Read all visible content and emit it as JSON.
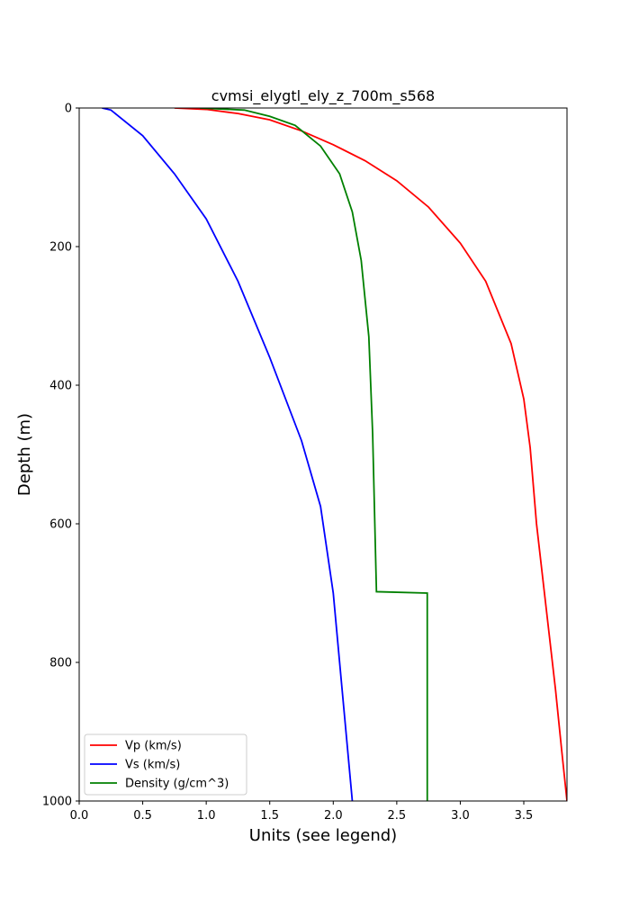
{
  "chart_data": {
    "type": "line",
    "title": "cvmsi_elygtl_ely_z_700m_s568",
    "xlabel": "Units (see legend)",
    "ylabel": "Depth (m)",
    "xlim": [
      0,
      3.84
    ],
    "ylim": [
      1000,
      0
    ],
    "y_inverted": true,
    "grid": false,
    "legend_placement": "lower-left",
    "xticks": [
      {
        "value": 0,
        "label": "0.0"
      },
      {
        "value": 0.5,
        "label": "0.5"
      },
      {
        "value": 1.0,
        "label": "1.0"
      },
      {
        "value": 1.5,
        "label": "1.5"
      },
      {
        "value": 2.0,
        "label": "2.0"
      },
      {
        "value": 2.5,
        "label": "2.5"
      },
      {
        "value": 3.0,
        "label": "3.0"
      },
      {
        "value": 3.5,
        "label": "3.5"
      }
    ],
    "yticks": [
      {
        "value": 0,
        "label": "0"
      },
      {
        "value": 200,
        "label": "200"
      },
      {
        "value": 400,
        "label": "400"
      },
      {
        "value": 600,
        "label": "600"
      },
      {
        "value": 800,
        "label": "800"
      },
      {
        "value": 1000,
        "label": "1000"
      }
    ],
    "series": [
      {
        "name": "Vp (km/s)",
        "color": "#ff0000",
        "x": [
          0.75,
          1.0,
          1.25,
          1.5,
          1.75,
          2.0,
          2.25,
          2.5,
          2.75,
          3.0,
          3.2,
          3.4,
          3.5,
          3.55,
          3.6,
          3.65,
          3.7,
          3.75,
          3.8,
          3.84
        ],
        "y": [
          0,
          2,
          8,
          17,
          33,
          53,
          76,
          105,
          143,
          195,
          250,
          340,
          420,
          490,
          600,
          680,
          760,
          840,
          930,
          1000
        ]
      },
      {
        "name": "Vs (km/s)",
        "color": "#0000ff",
        "x": [
          0.18,
          0.25,
          0.5,
          0.75,
          1.0,
          1.25,
          1.5,
          1.75,
          1.9,
          2.0,
          2.05,
          2.1,
          2.15
        ],
        "y": [
          0,
          3,
          40,
          95,
          160,
          250,
          360,
          480,
          575,
          700,
          800,
          900,
          1000
        ]
      },
      {
        "name": "Density (g/cm^3)",
        "color": "#008000",
        "x": [
          0.95,
          1.3,
          1.5,
          1.7,
          1.9,
          2.05,
          2.15,
          2.22,
          2.28,
          2.31,
          2.34,
          2.34,
          2.74,
          2.74
        ],
        "y": [
          0,
          3,
          12,
          25,
          55,
          95,
          150,
          220,
          330,
          470,
          698,
          698,
          700,
          1000
        ]
      }
    ]
  }
}
